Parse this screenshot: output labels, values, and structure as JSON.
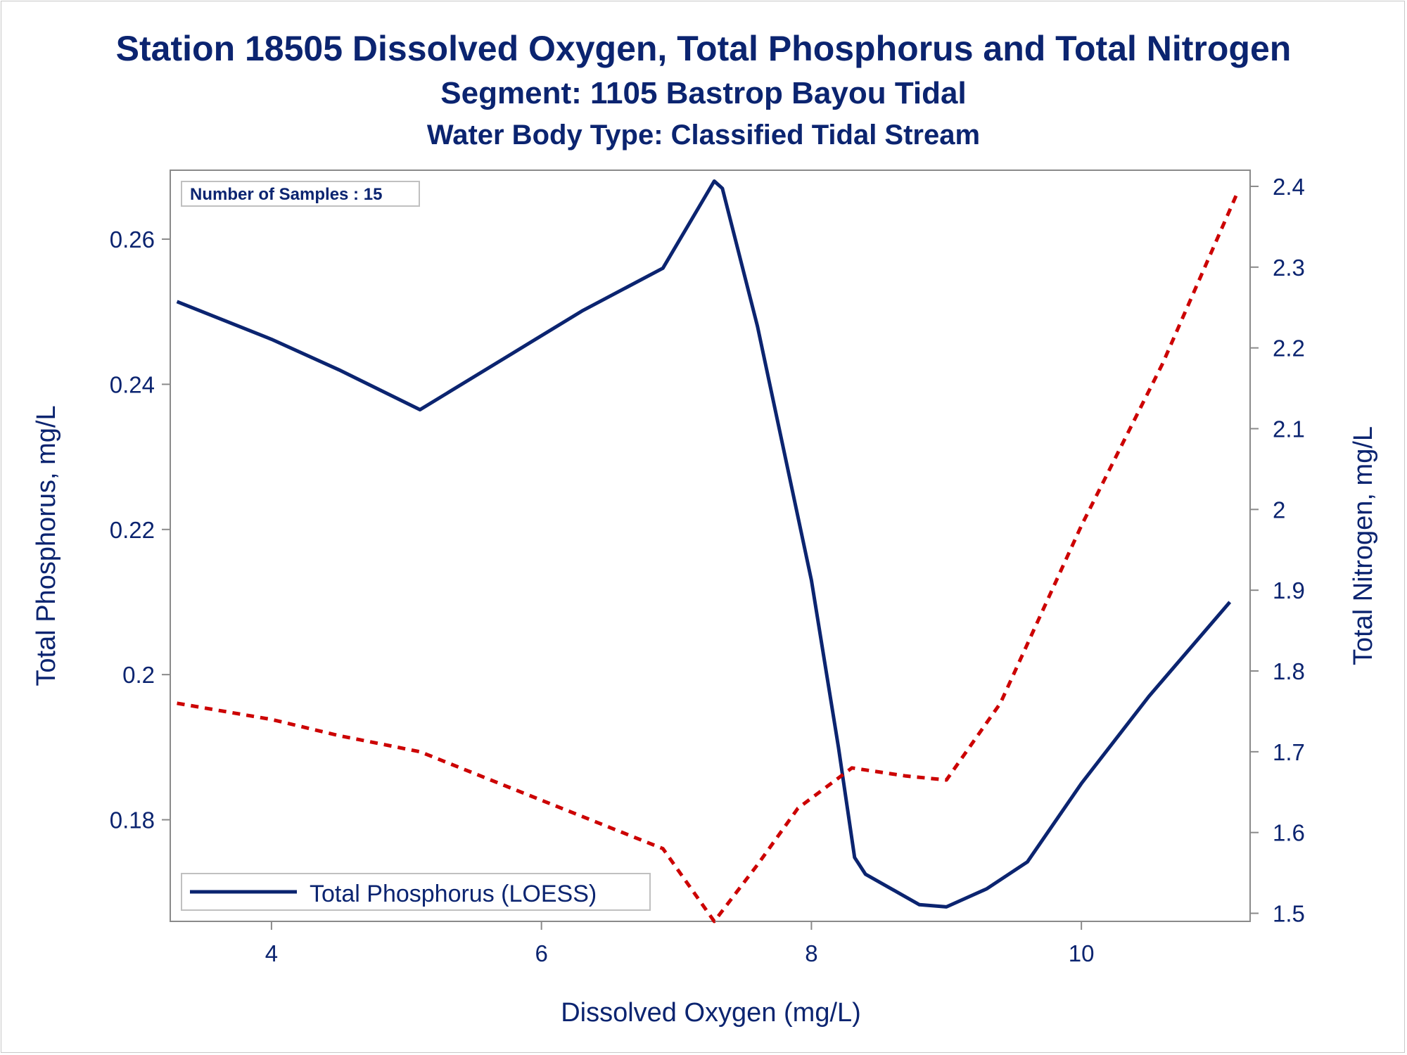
{
  "titles": {
    "line1": "Station 18505  Dissolved Oxygen, Total Phosphorus and Total Nitrogen",
    "line2": "Segment: 1105  Bastrop Bayou Tidal",
    "line3": "Water Body Type: Classified Tidal Stream"
  },
  "colors": {
    "phosphorus": "#0b2470",
    "nitrogen": "#cc0000",
    "axis": "#8a8a8a",
    "text": "#0b2470"
  },
  "inset": {
    "text": "Number of Samples : 15"
  },
  "legend": {
    "phosphorus_label": "Total Phosphorus (LOESS)"
  },
  "chart_data": {
    "type": "line",
    "xlabel": "Dissolved Oxygen (mg/L)",
    "ylabel_left": "Total Phosphorus, mg/L",
    "ylabel_right": "Total Nitrogen, mg/L",
    "xlim": [
      3.25,
      11.25
    ],
    "ylim_left": [
      0.166,
      0.2695
    ],
    "ylim_right": [
      1.49,
      2.42
    ],
    "x_ticks": [
      4,
      6,
      8,
      10
    ],
    "x_tick_labels": [
      "4",
      "6",
      "8",
      "10"
    ],
    "y_left_ticks": [
      0.18,
      0.2,
      0.22,
      0.24,
      0.26
    ],
    "y_left_tick_labels": [
      "0.18",
      "0.2",
      "0.22",
      "0.24",
      "0.26"
    ],
    "y_right_ticks": [
      1.5,
      1.6,
      1.7,
      1.8,
      1.9,
      2.0,
      2.1,
      2.2,
      2.3,
      2.4
    ],
    "y_right_tick_labels": [
      "1.5",
      "1.6",
      "1.7",
      "1.8",
      "1.9",
      "2",
      "2.1",
      "2.2",
      "2.3",
      "2.4"
    ],
    "series": [
      {
        "name": "Total Phosphorus (LOESS)",
        "axis": "left",
        "style": "solid",
        "points": [
          [
            3.3,
            0.2514
          ],
          [
            4.0,
            0.2462
          ],
          [
            4.5,
            0.242
          ],
          [
            5.1,
            0.2365
          ],
          [
            5.7,
            0.2433
          ],
          [
            6.3,
            0.2501
          ],
          [
            6.9,
            0.256
          ],
          [
            7.28,
            0.268
          ],
          [
            7.34,
            0.267
          ],
          [
            7.6,
            0.248
          ],
          [
            8.0,
            0.213
          ],
          [
            8.2,
            0.19
          ],
          [
            8.32,
            0.1748
          ],
          [
            8.4,
            0.1725
          ],
          [
            8.8,
            0.1683
          ],
          [
            9.0,
            0.168
          ],
          [
            9.3,
            0.1705
          ],
          [
            9.6,
            0.1742
          ],
          [
            10.0,
            0.185
          ],
          [
            10.5,
            0.197
          ],
          [
            11.1,
            0.21
          ]
        ]
      },
      {
        "name": "",
        "axis": "right",
        "style": "dashed",
        "points": [
          [
            3.3,
            1.76
          ],
          [
            4.0,
            1.74
          ],
          [
            4.5,
            1.72
          ],
          [
            5.1,
            1.7
          ],
          [
            5.7,
            1.66
          ],
          [
            6.3,
            1.62
          ],
          [
            6.9,
            1.58
          ],
          [
            7.28,
            1.49
          ],
          [
            7.6,
            1.56
          ],
          [
            7.9,
            1.63
          ],
          [
            8.3,
            1.68
          ],
          [
            8.7,
            1.67
          ],
          [
            9.0,
            1.665
          ],
          [
            9.4,
            1.76
          ],
          [
            10.0,
            1.98
          ],
          [
            10.6,
            2.18
          ],
          [
            11.15,
            2.39
          ]
        ]
      }
    ]
  }
}
